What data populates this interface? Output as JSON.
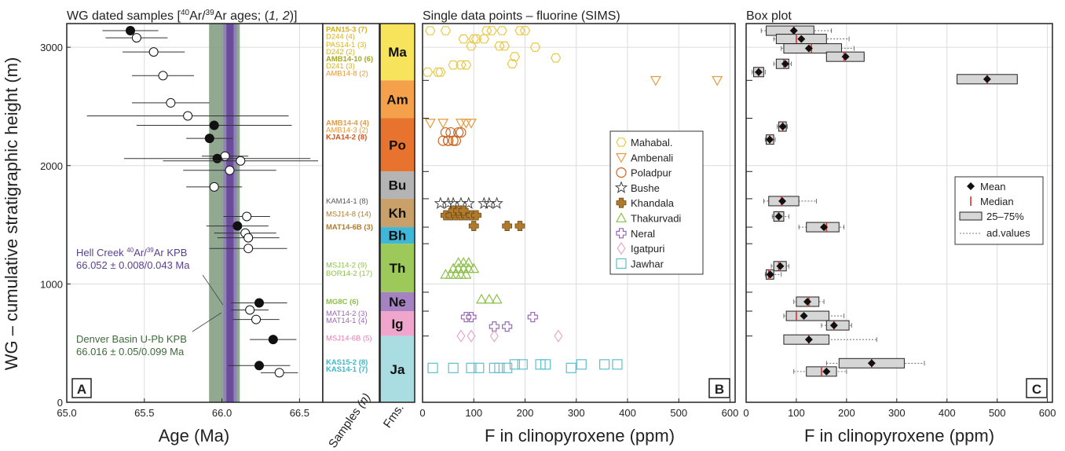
{
  "panel_a": {
    "title": "WG dated samples [40Ar/39Ar ages; (1, 2)]",
    "title_prefix": "WG dated samples [",
    "title_sup1": "40",
    "title_ar1": "Ar/",
    "title_sup2": "39",
    "title_ar2": "Ar ages; (",
    "title_italic": "1, 2",
    "title_suffix": ")]",
    "letter": "A",
    "xlabel": "Age (Ma)",
    "ylabel": "WG – cumulative stratigraphic height (m)",
    "xticks": [
      "65.0",
      "65.5",
      "66.0",
      "66.5"
    ],
    "yticks": [
      "0",
      "1000",
      "2000",
      "3000"
    ],
    "hell_creek": {
      "line1_prefix": "Hell Creek ",
      "sup1": "40",
      "ar1": "Ar/",
      "sup2": "39",
      "ar2": "Ar KPB",
      "line2": "66.052 ± 0.008/0.043 Ma",
      "color": "#5b3f8c"
    },
    "denver": {
      "line1": "Denver Basin U-Pb KPB",
      "line2": "66.016 ± 0.05/0.099 Ma",
      "color": "#3e6b3a"
    },
    "bands": {
      "green_color": "#7d9a7c",
      "purple_color": "#6a4c9c"
    }
  },
  "samples_column": {
    "xlabel": "Samples (n)",
    "xlabel_prefix": "Samples",
    "xlabel_italic": "(n)",
    "labels": [
      {
        "text": "PAN15-3 (7)",
        "h": 3150,
        "color": "#d9b21a",
        "bold": true
      },
      {
        "text": "D244 (4)",
        "h": 3090,
        "color": "#d9b21a",
        "bold": false
      },
      {
        "text": "PAS14-1 (3)",
        "h": 3020,
        "color": "#d9b21a",
        "bold": false
      },
      {
        "text": "D242 (2)",
        "h": 2960,
        "color": "#d9b21a",
        "bold": false
      },
      {
        "text": "AMB14-10 (6)",
        "h": 2900,
        "color": "#a8a81a",
        "bold": true
      },
      {
        "text": "D241 (3)",
        "h": 2840,
        "color": "#d9b21a",
        "bold": false
      },
      {
        "text": "AMB14-8 (2)",
        "h": 2780,
        "color": "#e79a3f",
        "bold": false
      },
      {
        "text": "AMB14-4 (4)",
        "h": 2360,
        "color": "#e79a3f",
        "bold": true
      },
      {
        "text": "AMB14-3 (2)",
        "h": 2300,
        "color": "#e79a3f",
        "bold": false
      },
      {
        "text": "KJA14-2 (8)",
        "h": 2240,
        "color": "#cc5522",
        "bold": true
      },
      {
        "text": "KAM14-1 (8)",
        "h": 1700,
        "color": "#555555",
        "bold": false
      },
      {
        "text": "MSJ14-8 (14)",
        "h": 1590,
        "color": "#b07a2a",
        "bold": false
      },
      {
        "text": "MAT14-6B (3)",
        "h": 1480,
        "color": "#b07a2a",
        "bold": true
      },
      {
        "text": "MSJ14-2 (9)",
        "h": 1160,
        "color": "#8cbf4a",
        "bold": false
      },
      {
        "text": "BOR14-2 (17)",
        "h": 1090,
        "color": "#8cbf4a",
        "bold": false
      },
      {
        "text": "MG8C (6)",
        "h": 850,
        "color": "#8cbf4a",
        "bold": true
      },
      {
        "text": "MAT14-2 (3)",
        "h": 750,
        "color": "#9a66b8",
        "bold": false
      },
      {
        "text": "MAT14-1 (4)",
        "h": 690,
        "color": "#9a66b8",
        "bold": false
      },
      {
        "text": "MSJ14-6B (5)",
        "h": 540,
        "color": "#e07ab0",
        "bold": false
      },
      {
        "text": "KAS15-2 (8)",
        "h": 340,
        "color": "#3fb8c8",
        "bold": true
      },
      {
        "text": "KAS14-1 (7)",
        "h": 280,
        "color": "#3fb8c8",
        "bold": true
      }
    ]
  },
  "formations": {
    "xlabel": "Fms.",
    "items": [
      {
        "abbr": "Ma",
        "bottom": 2720,
        "top": 3200,
        "color": "#f7e35c"
      },
      {
        "abbr": "Am",
        "bottom": 2400,
        "top": 2720,
        "color": "#f5a04a"
      },
      {
        "abbr": "Po",
        "bottom": 1950,
        "top": 2400,
        "color": "#e8732e"
      },
      {
        "abbr": "Bu",
        "bottom": 1720,
        "top": 1950,
        "color": "#b4b4b4"
      },
      {
        "abbr": "Kh",
        "bottom": 1480,
        "top": 1720,
        "color": "#c9a06a"
      },
      {
        "abbr": "Bh",
        "bottom": 1340,
        "top": 1480,
        "color": "#3fb7d8"
      },
      {
        "abbr": "Th",
        "bottom": 930,
        "top": 1340,
        "color": "#9cc95a"
      },
      {
        "abbr": "Ne",
        "bottom": 770,
        "top": 930,
        "color": "#a583c2"
      },
      {
        "abbr": "Ig",
        "bottom": 560,
        "top": 770,
        "color": "#f0a6cc"
      },
      {
        "abbr": "Ja",
        "bottom": 0,
        "top": 560,
        "color": "#a9dde2"
      }
    ]
  },
  "panel_b": {
    "title": "Single data points – fluorine (SIMS)",
    "letter": "B",
    "xlabel": "F in clinopyroxene (ppm)",
    "xticks": [
      "0",
      "100",
      "200",
      "300",
      "400",
      "500",
      "600"
    ],
    "legend": [
      {
        "name": "Mahabal.",
        "marker": "hexagon",
        "color": "#e8c845"
      },
      {
        "name": "Ambenali",
        "marker": "triangle-down",
        "color": "#e79a3f"
      },
      {
        "name": "Poladpur",
        "marker": "circle",
        "color": "#cc6622"
      },
      {
        "name": "Bushe",
        "marker": "star",
        "color": "#444444"
      },
      {
        "name": "Khandala",
        "marker": "cross",
        "color": "#b07a2a"
      },
      {
        "name": "Thakurvadi",
        "marker": "triangle-up",
        "color": "#8cbf4a"
      },
      {
        "name": "Neral",
        "marker": "plus",
        "color": "#9a66b8"
      },
      {
        "name": "Igatpuri",
        "marker": "diamond",
        "color": "#e8a6cc"
      },
      {
        "name": "Jawhar",
        "marker": "square",
        "color": "#5bc0d0"
      }
    ]
  },
  "panel_c": {
    "title": "Box plot",
    "letter": "C",
    "xlabel": "F in clinopyroxene (ppm)",
    "xticks": [
      "0",
      "100",
      "200",
      "300",
      "400",
      "500",
      "600"
    ],
    "legend": [
      {
        "name": "Mean"
      },
      {
        "name": "Median"
      },
      {
        "name": "25–75%"
      },
      {
        "name": "ad.values"
      }
    ]
  },
  "chart_data": [
    {
      "type": "scatter",
      "panel": "A",
      "title": "WG dated samples [40Ar/39Ar ages; (1, 2)]",
      "xlabel": "Age (Ma)",
      "ylabel": "WG – cumulative stratigraphic height (m)",
      "xlim": [
        65.0,
        66.65
      ],
      "ylim": [
        0,
        3200
      ],
      "reference_bands": [
        {
          "name": "Denver Basin U-Pb KPB",
          "center": 66.016,
          "half_width": 0.099
        },
        {
          "name": "Hell Creek 40Ar/39Ar KPB",
          "center": 66.052,
          "half_width": 0.043
        }
      ],
      "points": [
        {
          "x": 65.41,
          "y": 3140,
          "err": 0.18,
          "filled": true
        },
        {
          "x": 65.45,
          "y": 3080,
          "err": 0.2,
          "filled": false
        },
        {
          "x": 65.56,
          "y": 2960,
          "err": 0.2,
          "filled": false
        },
        {
          "x": 65.62,
          "y": 2760,
          "err": 0.2,
          "filled": false
        },
        {
          "x": 65.67,
          "y": 2530,
          "err": 0.25,
          "filled": false
        },
        {
          "x": 65.78,
          "y": 2420,
          "err": 0.65,
          "filled": false
        },
        {
          "x": 65.95,
          "y": 2340,
          "err": 0.5,
          "filled": true
        },
        {
          "x": 65.92,
          "y": 2230,
          "err": 0.15,
          "filled": true
        },
        {
          "x": 66.02,
          "y": 2080,
          "err": 0.15,
          "filled": false
        },
        {
          "x": 65.97,
          "y": 2060,
          "err": 0.6,
          "filled": true
        },
        {
          "x": 66.12,
          "y": 2040,
          "err": 0.5,
          "filled": false
        },
        {
          "x": 66.05,
          "y": 1960,
          "err": 0.3,
          "filled": false
        },
        {
          "x": 65.95,
          "y": 1820,
          "err": 0.18,
          "filled": false
        },
        {
          "x": 66.16,
          "y": 1570,
          "err": 0.15,
          "filled": false
        },
        {
          "x": 66.1,
          "y": 1490,
          "err": 0.2,
          "filled": true
        },
        {
          "x": 66.15,
          "y": 1430,
          "err": 0.2,
          "filled": false
        },
        {
          "x": 66.17,
          "y": 1390,
          "err": 0.2,
          "filled": false
        },
        {
          "x": 66.17,
          "y": 1300,
          "err": 0.25,
          "filled": false
        },
        {
          "x": 66.24,
          "y": 840,
          "err": 0.18,
          "filled": true
        },
        {
          "x": 66.18,
          "y": 780,
          "err": 0.12,
          "filled": false
        },
        {
          "x": 66.22,
          "y": 700,
          "err": 0.15,
          "filled": false
        },
        {
          "x": 66.33,
          "y": 530,
          "err": 0.15,
          "filled": true
        },
        {
          "x": 66.24,
          "y": 310,
          "err": 0.2,
          "filled": true
        },
        {
          "x": 66.37,
          "y": 250,
          "err": 0.12,
          "filled": false
        }
      ]
    },
    {
      "type": "scatter",
      "panel": "B",
      "title": "Single data points – fluorine (SIMS)",
      "xlabel": "F in clinopyroxene (ppm)",
      "xlim": [
        0,
        610
      ],
      "ylim": [
        0,
        3200
      ],
      "series": [
        {
          "name": "Mahabal.",
          "x": [
            15,
            45,
            125,
            135,
            155,
            190,
            80,
            100,
            120,
            200,
            105,
            95,
            150,
            160,
            220,
            260,
            35,
            10,
            30,
            60,
            75,
            85,
            175,
            180
          ],
          "y": [
            3140,
            3140,
            3140,
            3140,
            3140,
            3140,
            3070,
            3070,
            3070,
            3140,
            3070,
            3010,
            3010,
            3010,
            3000,
            2910,
            2790,
            2790,
            2790,
            2850,
            2850,
            2850,
            2860,
            2920
          ]
        },
        {
          "name": "Ambenali",
          "x": [
            455,
            575,
            15,
            40,
            75,
            85,
            95
          ],
          "y": [
            2720,
            2720,
            2360,
            2360,
            2360,
            2360,
            2360
          ]
        },
        {
          "name": "Poladpur",
          "x": [
            40,
            50,
            60,
            65,
            70,
            75,
            45,
            55,
            50
          ],
          "y": [
            2210,
            2210,
            2210,
            2210,
            2280,
            2280,
            2280,
            2280,
            2210
          ]
        },
        {
          "name": "Bushe",
          "x": [
            35,
            50,
            60,
            75,
            90,
            120,
            130,
            145
          ],
          "y": [
            1680,
            1680,
            1680,
            1680,
            1680,
            1680,
            1680,
            1680
          ]
        },
        {
          "name": "Khandala",
          "x": [
            45,
            55,
            65,
            75,
            85,
            95,
            105,
            60,
            70,
            80,
            100,
            165,
            190
          ],
          "y": [
            1580,
            1580,
            1580,
            1580,
            1580,
            1580,
            1580,
            1620,
            1620,
            1620,
            1490,
            1490,
            1490
          ]
        },
        {
          "name": "Thakurvadi",
          "x": [
            45,
            55,
            65,
            75,
            85,
            60,
            70,
            80,
            90,
            100,
            70,
            80,
            90,
            115,
            130,
            145
          ],
          "y": [
            1080,
            1080,
            1080,
            1080,
            1080,
            1130,
            1130,
            1130,
            1130,
            1130,
            1180,
            1180,
            1180,
            870,
            870,
            870
          ]
        },
        {
          "name": "Neral",
          "x": [
            85,
            95,
            215,
            140,
            165
          ],
          "y": [
            720,
            720,
            720,
            640,
            640
          ]
        },
        {
          "name": "Igatpuri",
          "x": [
            75,
            95,
            140,
            265
          ],
          "y": [
            560,
            560,
            560,
            560
          ]
        },
        {
          "name": "Jawhar",
          "x": [
            20,
            60,
            95,
            110,
            140,
            150,
            165,
            180,
            195,
            230,
            240,
            290,
            310,
            355,
            380
          ],
          "y": [
            290,
            290,
            290,
            290,
            290,
            290,
            290,
            320,
            320,
            320,
            320,
            290,
            320,
            320,
            320
          ]
        }
      ]
    },
    {
      "type": "box",
      "panel": "C",
      "title": "Box plot",
      "xlabel": "F in clinopyroxene (ppm)",
      "xlim": [
        0,
        610
      ],
      "ylim": [
        0,
        3200
      ],
      "boxes": [
        {
          "y": 3140,
          "q1": 40,
          "q3": 135,
          "median": 95,
          "mean": 95,
          "wlo": 30,
          "whi": 170
        },
        {
          "y": 3070,
          "q1": 60,
          "q3": 160,
          "median": 100,
          "mean": 110,
          "wlo": 55,
          "whi": 205
        },
        {
          "y": 2990,
          "q1": 75,
          "q3": 190,
          "median": 130,
          "mean": 125,
          "wlo": 70,
          "whi": 215
        },
        {
          "y": 2920,
          "q1": 160,
          "q3": 235,
          "median": 195,
          "mean": 198,
          "wlo": 160,
          "whi": 235
        },
        {
          "y": 2860,
          "q1": 60,
          "q3": 85,
          "median": 75,
          "mean": 78,
          "wlo": 55,
          "whi": 90
        },
        {
          "y": 2790,
          "q1": 15,
          "q3": 35,
          "median": 25,
          "mean": 25,
          "wlo": 12,
          "whi": 38
        },
        {
          "y": 2730,
          "q1": 420,
          "q3": 540,
          "median": 480,
          "mean": 480,
          "wlo": 420,
          "whi": 540
        },
        {
          "y": 2330,
          "q1": 65,
          "q3": 80,
          "median": 73,
          "mean": 73,
          "wlo": 62,
          "whi": 82
        },
        {
          "y": 2220,
          "q1": 40,
          "q3": 55,
          "median": 47,
          "mean": 47,
          "wlo": 38,
          "whi": 58
        },
        {
          "y": 1700,
          "q1": 45,
          "q3": 105,
          "median": 70,
          "mean": 72,
          "wlo": 35,
          "whi": 140
        },
        {
          "y": 1570,
          "q1": 55,
          "q3": 75,
          "median": 65,
          "mean": 65,
          "wlo": 52,
          "whi": 85
        },
        {
          "y": 1480,
          "q1": 120,
          "q3": 185,
          "median": 160,
          "mean": 155,
          "wlo": 105,
          "whi": 195
        },
        {
          "y": 1150,
          "q1": 55,
          "q3": 80,
          "median": 65,
          "mean": 68,
          "wlo": 50,
          "whi": 85
        },
        {
          "y": 1080,
          "q1": 40,
          "q3": 55,
          "median": 45,
          "mean": 48,
          "wlo": 38,
          "whi": 70
        },
        {
          "y": 850,
          "q1": 100,
          "q3": 145,
          "median": 125,
          "mean": 122,
          "wlo": 95,
          "whi": 155
        },
        {
          "y": 730,
          "q1": 80,
          "q3": 165,
          "median": 100,
          "mean": 115,
          "wlo": 75,
          "whi": 195
        },
        {
          "y": 650,
          "q1": 160,
          "q3": 205,
          "median": 175,
          "mean": 175,
          "wlo": 150,
          "whi": 210
        },
        {
          "y": 530,
          "q1": 75,
          "q3": 165,
          "median": 125,
          "mean": 125,
          "wlo": 75,
          "whi": 260
        },
        {
          "y": 330,
          "q1": 185,
          "q3": 315,
          "median": 250,
          "mean": 250,
          "wlo": 160,
          "whi": 355
        },
        {
          "y": 260,
          "q1": 120,
          "q3": 180,
          "median": 150,
          "mean": 160,
          "wlo": 95,
          "whi": 200
        }
      ]
    }
  ]
}
